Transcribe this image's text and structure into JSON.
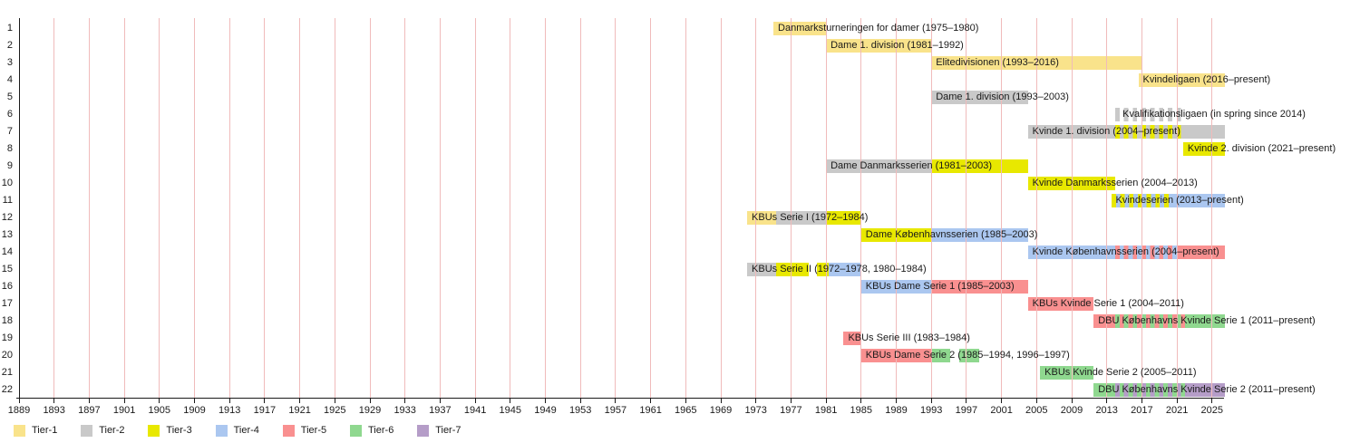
{
  "chart_data": {
    "type": "timeline",
    "title": "",
    "x_axis": {
      "tick_labels": [
        1889,
        1893,
        1897,
        1901,
        1905,
        1909,
        1913,
        1917,
        1921,
        1925,
        1929,
        1933,
        1937,
        1941,
        1945,
        1949,
        1953,
        1957,
        1961,
        1965,
        1969,
        1973,
        1977,
        1981,
        1985,
        1989,
        1993,
        1997,
        2001,
        2005,
        2009,
        2013,
        2017,
        2021,
        2025
      ],
      "gridlines": true,
      "gridline_color": "#F0BBBB",
      "first_gridline_color": "#1a1a1a"
    },
    "present_end": 2026.5,
    "tier_colors": {
      "tier1": "#F9E38B",
      "tier2": "#C9C9C9",
      "tier3": "#E8E800",
      "tier4": "#ABC7F0",
      "tier5": "#F99090",
      "tier6": "#8FD88F",
      "tier7": "#B59DC8",
      "white": "#FFFFFF"
    },
    "legend": [
      {
        "label": "Tier-1",
        "tier": "tier1"
      },
      {
        "label": "Tier-2",
        "tier": "tier2"
      },
      {
        "label": "Tier-3",
        "tier": "tier3"
      },
      {
        "label": "Tier-4",
        "tier": "tier4"
      },
      {
        "label": "Tier-5",
        "tier": "tier5"
      },
      {
        "label": "Tier-6",
        "tier": "tier6"
      },
      {
        "label": "Tier-7",
        "tier": "tier7"
      }
    ],
    "rows": [
      {
        "num": 1,
        "label": "Danmarksturneringen for damer (1975–1980)",
        "segments": [
          {
            "from": 1975,
            "to": 1981,
            "tier": "tier1"
          }
        ]
      },
      {
        "num": 2,
        "label": "Dame 1. division (1981–1992)",
        "segments": [
          {
            "from": 1981,
            "to": 1993,
            "tier": "tier1"
          }
        ]
      },
      {
        "num": 3,
        "label": "Elitedivisionen (1993–2016)",
        "segments": [
          {
            "from": 1993,
            "to": 2017,
            "tier": "tier1"
          }
        ]
      },
      {
        "num": 4,
        "label": "Kvindeligaen (2016–present)",
        "segments": [
          {
            "from": 2016.6,
            "to": 2026.5,
            "tier": "tier1"
          }
        ]
      },
      {
        "num": 5,
        "label": "Dame 1. division (1993–2003)",
        "segments": [
          {
            "from": 1993,
            "to": 2004,
            "tier": "tier2"
          }
        ]
      },
      {
        "num": 6,
        "label": "Kvalifikationsligaen (in spring since 2014)",
        "label_at": 2014.8,
        "segments": [
          {
            "from": 2014,
            "to": 2021.9,
            "stripes": [
              "tier2",
              "white"
            ]
          }
        ]
      },
      {
        "num": 7,
        "label": "Kvinde 1. division (2004–present)",
        "segments": [
          {
            "from": 2004,
            "to": 2014,
            "tier": "tier2"
          },
          {
            "from": 2014,
            "to": 2021.9,
            "stripes": [
              "tier3",
              "tier2"
            ]
          },
          {
            "from": 2021.9,
            "to": 2026.5,
            "tier": "tier2"
          }
        ]
      },
      {
        "num": 8,
        "label": "Kvinde 2. division (2021–present)",
        "segments": [
          {
            "from": 2021.7,
            "to": 2026.5,
            "tier": "tier3"
          }
        ]
      },
      {
        "num": 9,
        "label": "Dame Danmarksserien (1981–2003)",
        "segments": [
          {
            "from": 1981,
            "to": 1993,
            "tier": "tier2"
          },
          {
            "from": 1993,
            "to": 2004,
            "tier": "tier3"
          }
        ]
      },
      {
        "num": 10,
        "label": "Kvinde Danmarksserien (2004–2013)",
        "segments": [
          {
            "from": 2004,
            "to": 2014,
            "tier": "tier3"
          }
        ]
      },
      {
        "num": 11,
        "label": "Kvindeserien (2013–present)",
        "segments": [
          {
            "from": 2013.5,
            "to": 2020.3,
            "stripes": [
              "tier3",
              "tier4"
            ]
          },
          {
            "from": 2020.3,
            "to": 2026.5,
            "tier": "tier4"
          }
        ]
      },
      {
        "num": 12,
        "label": "KBUs Serie I (1972–1984)",
        "segments": [
          {
            "from": 1972,
            "to": 1975.3,
            "tier": "tier1"
          },
          {
            "from": 1975.3,
            "to": 1981,
            "tier": "tier2"
          },
          {
            "from": 1981,
            "to": 1985,
            "tier": "tier3"
          }
        ]
      },
      {
        "num": 13,
        "label": "Dame Københavnsserien (1985–2003)",
        "segments": [
          {
            "from": 1985,
            "to": 1993,
            "tier": "tier3"
          },
          {
            "from": 1993,
            "to": 2004,
            "tier": "tier4"
          }
        ]
      },
      {
        "num": 14,
        "label": "Kvinde Københavnsserien (2004–present)",
        "segments": [
          {
            "from": 2004,
            "to": 2014,
            "tier": "tier4"
          },
          {
            "from": 2014,
            "to": 2021.3,
            "stripes": [
              "tier5",
              "tier4"
            ]
          },
          {
            "from": 2021.3,
            "to": 2026.5,
            "tier": "tier5"
          }
        ]
      },
      {
        "num": 15,
        "label": "KBUs Serie II (1972–1978, 1980–1984)",
        "segments": [
          {
            "from": 1972,
            "to": 1975.3,
            "tier": "tier2"
          },
          {
            "from": 1975.3,
            "to": 1979,
            "tier": "tier3"
          },
          {
            "from": 1980,
            "to": 1981.3,
            "tier": "tier3"
          },
          {
            "from": 1981.3,
            "to": 1985,
            "tier": "tier4"
          }
        ]
      },
      {
        "num": 16,
        "label": "KBUs Dame Serie 1 (1985–2003)",
        "segments": [
          {
            "from": 1985,
            "to": 1993,
            "tier": "tier4"
          },
          {
            "from": 1993,
            "to": 2004,
            "tier": "tier5"
          }
        ]
      },
      {
        "num": 17,
        "label": "KBUs Kvinde Serie 1 (2004–2011)",
        "segments": [
          {
            "from": 2004,
            "to": 2011.5,
            "tier": "tier5"
          }
        ]
      },
      {
        "num": 18,
        "label": "DBU Københavns Kvinde Serie 1 (2011–present)",
        "segments": [
          {
            "from": 2011.5,
            "to": 2014,
            "tier": "tier5"
          },
          {
            "from": 2014,
            "to": 2021.9,
            "stripes": [
              "tier6",
              "tier5"
            ]
          },
          {
            "from": 2021.9,
            "to": 2026.5,
            "tier": "tier6"
          }
        ]
      },
      {
        "num": 19,
        "label": "KBUs Serie III (1983–1984)",
        "segments": [
          {
            "from": 1983,
            "to": 1985,
            "tier": "tier5"
          }
        ]
      },
      {
        "num": 20,
        "label": "KBUs Dame Serie 2 (1985–1994, 1996–1997)",
        "segments": [
          {
            "from": 1985,
            "to": 1993,
            "tier": "tier5"
          },
          {
            "from": 1993,
            "to": 1995.2,
            "tier": "tier6"
          },
          {
            "from": 1996.2,
            "to": 1998.5,
            "tier": "tier6"
          }
        ]
      },
      {
        "num": 21,
        "label": "KBUs Kvinde Serie 2 (2005–2011)",
        "segments": [
          {
            "from": 2005.4,
            "to": 2011.5,
            "tier": "tier6"
          }
        ]
      },
      {
        "num": 22,
        "label": "DBU Københavns Kvinde Serie 2 (2011–present)",
        "segments": [
          {
            "from": 2011.5,
            "to": 2014,
            "tier": "tier6"
          },
          {
            "from": 2014,
            "to": 2021.9,
            "stripes": [
              "tier7",
              "tier6"
            ]
          },
          {
            "num_end": true,
            "from": 2021.9,
            "to": 2026.5,
            "tier": "tier7"
          }
        ]
      }
    ]
  }
}
